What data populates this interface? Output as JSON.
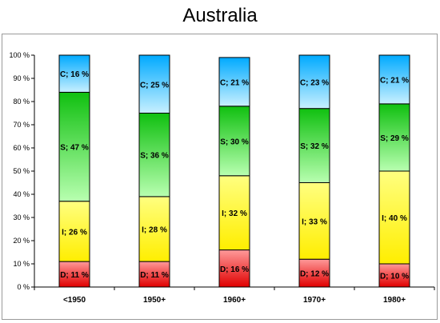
{
  "chart_data": {
    "type": "bar",
    "stacked": true,
    "title": "Australia",
    "categories": [
      "<1950",
      "1950+",
      "1960+",
      "1970+",
      "1980+"
    ],
    "series": [
      {
        "name": "D",
        "values": [
          11,
          11,
          16,
          12,
          10
        ],
        "labels": [
          "D; 11 %",
          "D; 11 %",
          "D; 16 %",
          "D; 12 %",
          "D; 10 %"
        ],
        "color_top": "#ff9a9a",
        "color_bottom": "#e00000"
      },
      {
        "name": "I",
        "values": [
          26,
          28,
          32,
          33,
          40
        ],
        "labels": [
          "I; 26 %",
          "I; 28 %",
          "I; 32 %",
          "I; 33 %",
          "I; 40 %"
        ],
        "color_top": "#ffff80",
        "color_bottom": "#ffee00"
      },
      {
        "name": "S",
        "values": [
          47,
          36,
          30,
          32,
          29
        ],
        "labels": [
          "S; 47 %",
          "S; 36 %",
          "S; 30 %",
          "S; 32 %",
          "S; 29 %"
        ],
        "color_top": "#10c010",
        "color_bottom": "#b8ffb0"
      },
      {
        "name": "C",
        "values": [
          16,
          25,
          21,
          23,
          21
        ],
        "labels": [
          "C; 16 %",
          "C; 25 %",
          "C; 21 %",
          "C; 23 %",
          "C; 21 %"
        ],
        "color_top": "#00aaff",
        "color_bottom": "#c8f0ff"
      }
    ],
    "ylim": [
      0,
      100
    ],
    "yticks": [
      "0 %",
      "10 %",
      "20 %",
      "30 %",
      "40 %",
      "50 %",
      "60 %",
      "70 %",
      "80 %",
      "90 %",
      "100 %"
    ],
    "grid": false,
    "legend": "none"
  }
}
